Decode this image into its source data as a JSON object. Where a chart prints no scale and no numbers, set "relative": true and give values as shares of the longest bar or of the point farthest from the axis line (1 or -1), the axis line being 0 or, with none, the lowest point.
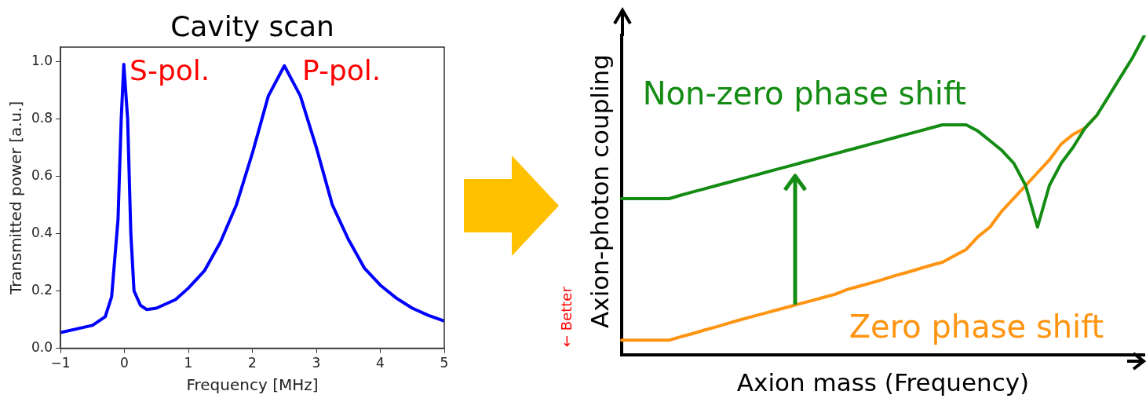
{
  "chart_data": [
    {
      "type": "line",
      "title": "Cavity scan",
      "xlabel": "Frequency [MHz]",
      "ylabel": "Transmitted power [a.u.]",
      "marker": "none",
      "grid": false,
      "legend": false,
      "x": [
        -1,
        -0.5,
        -0.3,
        -0.2,
        -0.1,
        -0.05,
        -0.01,
        0.05,
        0.1,
        0.15,
        0.25,
        0.35,
        0.5,
        0.8,
        1.0,
        1.25,
        1.5,
        1.75,
        2.0,
        2.25,
        2.5,
        2.75,
        3.0,
        3.25,
        3.5,
        3.75,
        4.0,
        4.25,
        4.5,
        4.75,
        5.0
      ],
      "series": [
        {
          "color": "#0000ff",
          "values": [
            0.055,
            0.08,
            0.11,
            0.18,
            0.45,
            0.8,
            0.99,
            0.8,
            0.4,
            0.2,
            0.15,
            0.135,
            0.14,
            0.17,
            0.21,
            0.27,
            0.37,
            0.5,
            0.68,
            0.88,
            0.985,
            0.88,
            0.7,
            0.5,
            0.38,
            0.28,
            0.22,
            0.175,
            0.14,
            0.115,
            0.095
          ]
        }
      ],
      "xlim": [
        -1,
        5
      ],
      "xticks": [
        {
          "value": -1,
          "label": "−1"
        },
        0,
        1,
        2,
        3,
        4,
        5
      ],
      "ylim": [
        0,
        1.05
      ],
      "yticks": [
        {
          "value": 0,
          "label": "0.0"
        },
        0.2,
        0.4,
        0.6,
        0.8,
        {
          "value": 1,
          "label": "1.0"
        }
      ],
      "annotations": [
        "S-pol.",
        "P-pol."
      ]
    },
    {
      "type": "line",
      "relative": true,
      "xlabel": "Axion mass (Frequency)",
      "ylabel": "Axion-photon coupling",
      "marker": "none",
      "legend": false,
      "categories": [
        null,
        null,
        null,
        null,
        null,
        null,
        null,
        null,
        null,
        null,
        null,
        null,
        null,
        null,
        null,
        null,
        null,
        null,
        null,
        null,
        null,
        null,
        null,
        null,
        null,
        null,
        null,
        null,
        null,
        null,
        null,
        null,
        null,
        null,
        null,
        null,
        null,
        null,
        null,
        null,
        null,
        null,
        null,
        null,
        null
      ],
      "series": [
        {
          "name": "Non-zero phase shift",
          "color": "#148c14",
          "values": [
            0.489,
            0.489,
            0.489,
            0.489,
            0.489,
            0.5,
            0.51,
            0.52,
            0.53,
            0.54,
            0.55,
            0.56,
            0.57,
            0.58,
            0.59,
            0.6,
            0.61,
            0.62,
            0.63,
            0.64,
            0.65,
            0.66,
            0.67,
            0.68,
            0.69,
            0.7,
            0.71,
            0.72,
            0.72,
            0.72,
            0.7,
            0.67,
            0.64,
            0.6,
            0.53,
            0.4,
            0.53,
            0.6,
            0.65,
            0.71,
            0.75,
            0.81,
            0.87,
            0.93,
            1.0
          ]
        },
        {
          "name": "Zero phase shift",
          "color": "#ff9410",
          "values": [
            0.046,
            0.046,
            0.046,
            0.046,
            0.046,
            0.057,
            0.067,
            0.078,
            0.088,
            0.099,
            0.11,
            0.12,
            0.13,
            0.14,
            0.15,
            0.16,
            0.17,
            0.18,
            0.19,
            0.205,
            0.215,
            0.225,
            0.236,
            0.248,
            0.258,
            0.269,
            0.28,
            0.29,
            0.31,
            0.33,
            0.37,
            0.4,
            0.45,
            0.49,
            0.53,
            0.57,
            0.61,
            0.66,
            0.69,
            0.71,
            0.75,
            null,
            null,
            null,
            null
          ]
        }
      ],
      "annotations": [
        "← Better"
      ]
    }
  ]
}
